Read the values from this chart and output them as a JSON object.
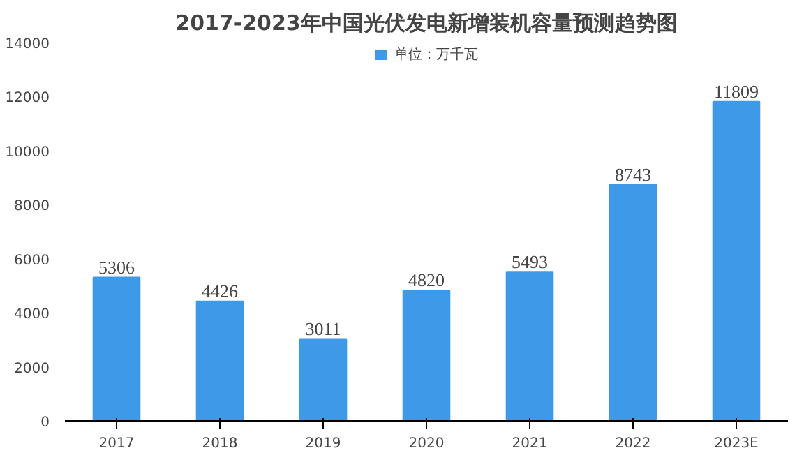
{
  "chart_data": {
    "type": "bar",
    "title": "2017-2023年中国光伏发电新增装机容量预测趋势图",
    "categories": [
      "2017",
      "2018",
      "2019",
      "2020",
      "2021",
      "2022",
      "2023E"
    ],
    "series": [
      {
        "name": "单位：万千瓦",
        "color": "#3e9ae8",
        "values": [
          5306,
          4426,
          3011,
          4820,
          5493,
          8743,
          11809
        ]
      }
    ],
    "ylim": [
      0,
      14000
    ],
    "yticks": [
      0,
      2000,
      4000,
      6000,
      8000,
      10000,
      12000,
      14000
    ],
    "data_labels": true,
    "legend": "top",
    "grid": false
  }
}
